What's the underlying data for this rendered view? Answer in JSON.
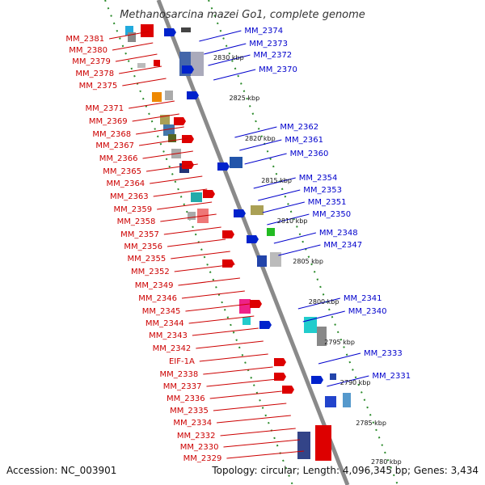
{
  "title": "Methanosarcina mazei Go1, complete genome",
  "footer": {
    "accession": "Accession: NC_003901",
    "topology": "Topology: circular; Length: 4,096,345 bp; Genes: 3,434"
  },
  "colors": {
    "left_label": "#cc0000",
    "right_label": "#0000cc",
    "backbone": "#888888",
    "ring": "#2a8a2a"
  },
  "kbp_marks": [
    "2830 kbp",
    "2825 kbp",
    "2820 kbp",
    "2815 kbp",
    "2810 kbp",
    "2805 kbp",
    "2800 kbp",
    "2795 kbp",
    "2790 kbp",
    "2785 kbp",
    "2780 kbp"
  ],
  "left_labels": [
    "MM_2381",
    "MM_2380",
    "MM_2379",
    "MM_2378",
    "MM_2375",
    "MM_2371",
    "MM_2369",
    "MM_2368",
    "MM_2367",
    "MM_2366",
    "MM_2365",
    "MM_2364",
    "MM_2363",
    "MM_2359",
    "MM_2358",
    "MM_2357",
    "MM_2356",
    "MM_2355",
    "MM_2352",
    "MM_2349",
    "MM_2346",
    "MM_2345",
    "MM_2344",
    "MM_2343",
    "MM_2342",
    "EIF-1A",
    "MM_2338",
    "MM_2337",
    "MM_2336",
    "MM_2335",
    "MM_2334",
    "MM_2332",
    "MM_2330",
    "MM_2329"
  ],
  "right_labels": [
    "MM_2374",
    "MM_2373",
    "MM_2372",
    "MM_2370",
    "MM_2362",
    "MM_2361",
    "MM_2360",
    "MM_2354",
    "MM_2353",
    "MM_2351",
    "MM_2350",
    "MM_2348",
    "MM_2347",
    "MM_2341",
    "MM_2340",
    "MM_2333",
    "MM_2331"
  ]
}
